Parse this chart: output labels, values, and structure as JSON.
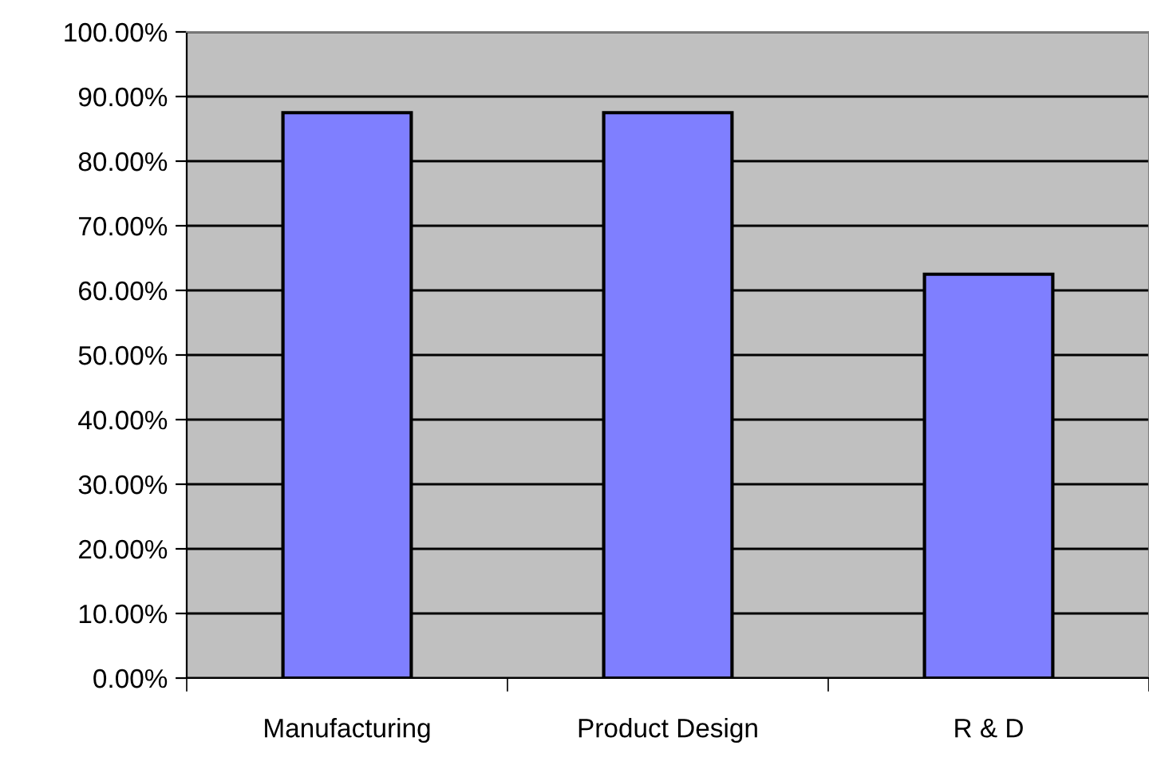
{
  "chart_data": {
    "type": "bar",
    "categories": [
      "Manufacturing",
      "Product Design",
      "R & D"
    ],
    "values": [
      87.5,
      87.5,
      62.5
    ],
    "color": "#7f7fff",
    "ylim": [
      0,
      100
    ],
    "yticks": [
      {
        "value": 0,
        "label": "0.00%"
      },
      {
        "value": 10,
        "label": "10.00%"
      },
      {
        "value": 20,
        "label": "20.00%"
      },
      {
        "value": 30,
        "label": "30.00%"
      },
      {
        "value": 40,
        "label": "40.00%"
      },
      {
        "value": 50,
        "label": "50.00%"
      },
      {
        "value": 60,
        "label": "60.00%"
      },
      {
        "value": 70,
        "label": "70.00%"
      },
      {
        "value": 80,
        "label": "80.00%"
      },
      {
        "value": 90,
        "label": "90.00%"
      },
      {
        "value": 100,
        "label": "100.00%"
      }
    ],
    "grid": "y"
  }
}
